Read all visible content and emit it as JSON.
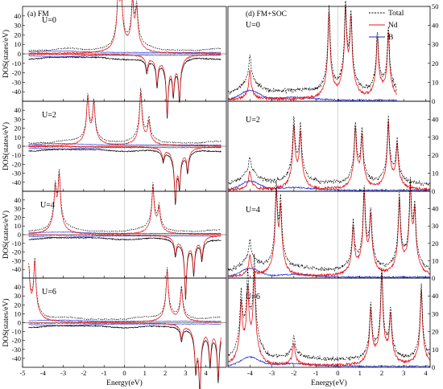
{
  "chart_data": [
    {
      "type": "line",
      "panel_label": "(a) FM",
      "xlabel": "Energy(eV)",
      "ylabel": "DOS(states/eV)",
      "xlim": [
        -5,
        5
      ],
      "ylim": [
        -50,
        50
      ],
      "xticks": [
        -5,
        -4,
        -3,
        -2,
        -1,
        0,
        1,
        2,
        3,
        4
      ],
      "yticks": [
        -40,
        -30,
        -20,
        -10,
        0,
        10,
        20,
        30,
        40
      ],
      "fermi_level": 0,
      "colors": {
        "Total": "#000000",
        "Nd": "#e8141a",
        "B": "#1a2cd6"
      },
      "subplots": [
        {
          "label": "U=0",
          "peaks_up": [
            [
              -0.3,
              45
            ],
            [
              -0.15,
              34
            ],
            [
              0.4,
              36
            ],
            [
              0.6,
              30
            ]
          ],
          "peaks_down": [
            [
              1.1,
              -12
            ],
            [
              1.6,
              -22
            ],
            [
              2.1,
              -45
            ],
            [
              2.4,
              -26
            ],
            [
              2.7,
              -33
            ]
          ]
        },
        {
          "label": "U=2",
          "peaks_up": [
            [
              -1.8,
              38
            ],
            [
              -1.5,
              33
            ],
            [
              0.8,
              44
            ],
            [
              1.2,
              18
            ]
          ],
          "peaks_down": [
            [
              1.9,
              -10
            ],
            [
              2.5,
              -42
            ],
            [
              2.7,
              -28
            ],
            [
              3.1,
              -18
            ]
          ]
        },
        {
          "label": "U=4",
          "peaks_up": [
            [
              -3.4,
              35
            ],
            [
              -3.2,
              47
            ],
            [
              1.4,
              40
            ],
            [
              1.7,
              20
            ]
          ],
          "peaks_down": [
            [
              2.5,
              -15
            ],
            [
              3.0,
              -52
            ],
            [
              3.4,
              -30
            ],
            [
              3.8,
              -18
            ]
          ]
        },
        {
          "label": "U=6",
          "peaks_up": [
            [
              -4.7,
              43
            ],
            [
              -4.4,
              48
            ],
            [
              2.1,
              44
            ],
            [
              2.8,
              28
            ]
          ],
          "peaks_down": [
            [
              2.8,
              -12
            ],
            [
              3.5,
              -33
            ],
            [
              3.7,
              -52
            ],
            [
              4.2,
              -30
            ],
            [
              4.6,
              -45
            ]
          ]
        }
      ]
    },
    {
      "type": "line",
      "panel_label": "(d) FM+SOC",
      "xlabel": "Energy(eV)",
      "xlim": [
        -5,
        4.2
      ],
      "ylim": [
        0,
        50
      ],
      "xticks": [
        -4,
        -3,
        -2,
        -1,
        0,
        1,
        2,
        3,
        4
      ],
      "yticks": [
        0,
        10,
        20,
        30,
        40,
        50
      ],
      "fermi_level": 0,
      "legend": {
        "position": "top-right",
        "entries": [
          "Total",
          "Nd",
          "B"
        ]
      },
      "series_styles": {
        "Total": "dashed",
        "Nd": "solid",
        "B": "solid"
      },
      "colors": {
        "Total": "#000000",
        "Nd": "#e8141a",
        "B": "#1a2cd6"
      },
      "subplots": [
        {
          "label": "U=0",
          "x_extent": [
            -5,
            2.7
          ],
          "peaks": [
            [
              -4.0,
              15
            ],
            [
              -0.4,
              43
            ],
            [
              0.35,
              41
            ],
            [
              0.6,
              36
            ],
            [
              1.8,
              30
            ],
            [
              2.3,
              32
            ]
          ]
        },
        {
          "label": "U=2",
          "peaks": [
            [
              -4.0,
              10
            ],
            [
              -2.0,
              32
            ],
            [
              -1.7,
              28
            ],
            [
              0.8,
              30
            ],
            [
              1.1,
              26
            ],
            [
              2.3,
              34
            ],
            [
              2.7,
              22
            ]
          ]
        },
        {
          "label": "U=4",
          "peaks": [
            [
              -4.0,
              12
            ],
            [
              -2.8,
              42
            ],
            [
              -2.6,
              32
            ],
            [
              0.7,
              25
            ],
            [
              1.2,
              43
            ],
            [
              1.5,
              30
            ],
            [
              2.8,
              40
            ],
            [
              3.3,
              43
            ],
            [
              3.5,
              30
            ]
          ]
        },
        {
          "label": "U=6",
          "peaks": [
            [
              -4.4,
              30
            ],
            [
              -4.1,
              36
            ],
            [
              -3.8,
              46
            ],
            [
              -2.0,
              12
            ],
            [
              1.5,
              28
            ],
            [
              2.0,
              47
            ],
            [
              2.4,
              25
            ],
            [
              3.8,
              40
            ]
          ]
        }
      ]
    }
  ]
}
